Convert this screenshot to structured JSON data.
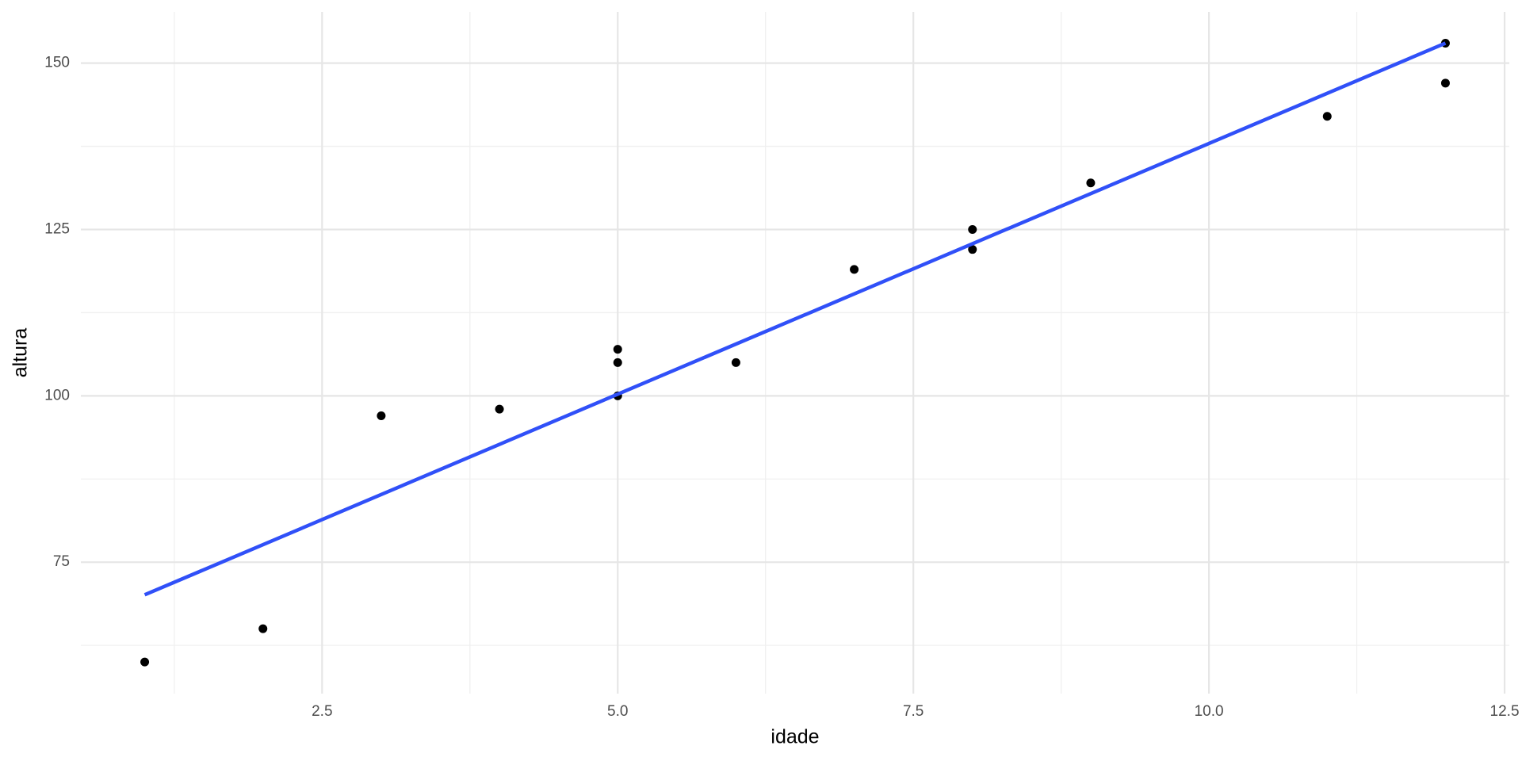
{
  "chart_data": {
    "type": "scatter",
    "x_label": "idade",
    "y_label": "altura",
    "x": [
      1,
      2,
      3,
      4,
      5,
      5,
      5,
      6,
      7,
      8,
      8,
      9,
      11,
      12,
      12
    ],
    "values": [
      60,
      65,
      97,
      98,
      107,
      105,
      100,
      105,
      119,
      125,
      122,
      132,
      142,
      153,
      147
    ],
    "color": "#000000",
    "fit": {
      "x": [
        1,
        12
      ],
      "values": [
        70.1,
        153
      ],
      "color": "#3050f8"
    },
    "xlim": [
      0.46,
      12.54
    ],
    "xticks": [
      {
        "value": 2.5,
        "label": "2.5"
      },
      {
        "value": 5,
        "label": "5.0"
      },
      {
        "value": 7.5,
        "label": "7.5"
      },
      {
        "value": 10,
        "label": "10.0"
      },
      {
        "value": 12.5,
        "label": "12.5"
      }
    ],
    "ylim": [
      55.25,
      157.7
    ],
    "yticks": [
      75,
      100,
      125,
      150
    ],
    "grid": true
  }
}
